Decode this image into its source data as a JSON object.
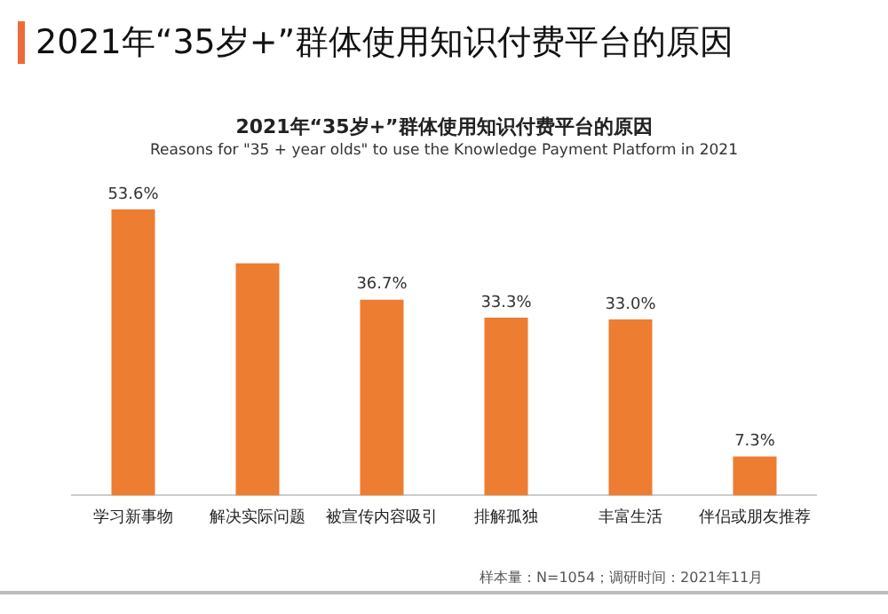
{
  "chart_data": {
    "type": "bar",
    "title": "2021年“35岁+”群体使用知识付费平台的原因",
    "subtitle": "Reasons for \"35 + year olds\" to use the Knowledge Payment Platform in 2021",
    "annotations": [
      "2021年“35岁+”群体使用知识付费平台的原因",
      "样本量：N=1054；调研时间：2021年11月"
    ],
    "categories": [
      "学习新事物",
      "解决实际问题",
      "被宣传内容吸引",
      "排解孤独",
      "丰富生活",
      "伴侣或朋友推荐"
    ],
    "values": [
      53.6,
      43.5,
      36.7,
      33.3,
      33.0,
      7.3
    ],
    "value_labels": [
      "53.6%",
      null,
      "36.7%",
      "33.3%",
      "33.0%",
      "7.3%"
    ],
    "color": "#ed7d31",
    "grid": false,
    "legend": false
  }
}
